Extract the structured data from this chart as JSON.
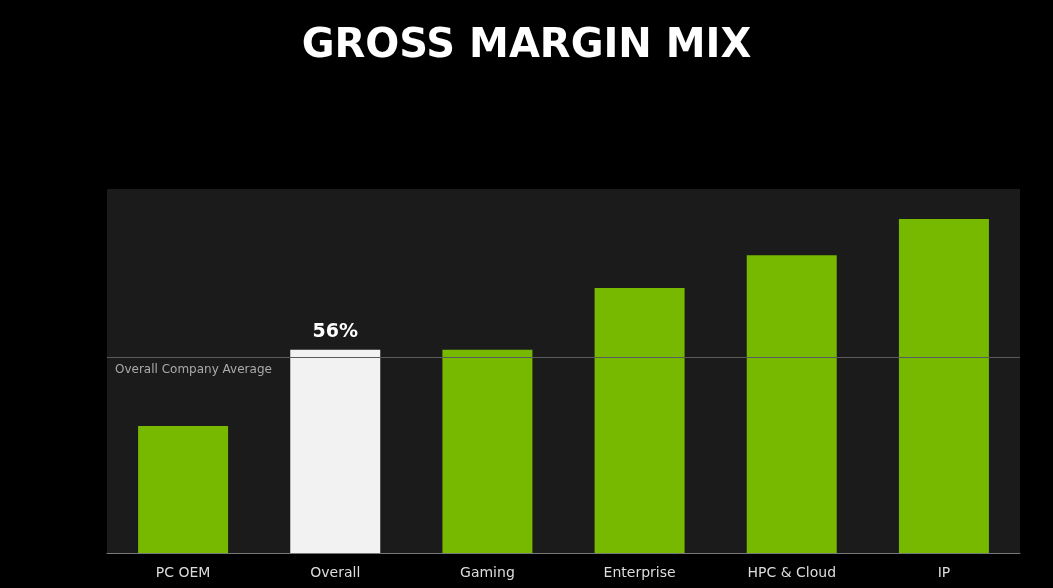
{
  "chart_data": {
    "type": "bar",
    "title": "GROSS MARGIN MIX",
    "tick_labels": "x",
    "categories": [
      "PC OEM",
      "Overall",
      "Gaming",
      "Enterprise",
      "HPC & Cloud",
      "IP"
    ],
    "values": [
      35,
      56,
      56,
      73,
      82,
      92
    ],
    "colors": [
      "#76b900",
      "#f2f2f2",
      "#76b900",
      "#76b900",
      "#76b900",
      "#76b900"
    ],
    "value_labels": [
      null,
      "56%",
      null,
      null,
      null,
      null
    ],
    "ref_lines": [
      {
        "axis": "y",
        "value": 54,
        "label": "Overall Company Average",
        "color": "#5a5a5a"
      }
    ],
    "grid": false
  }
}
